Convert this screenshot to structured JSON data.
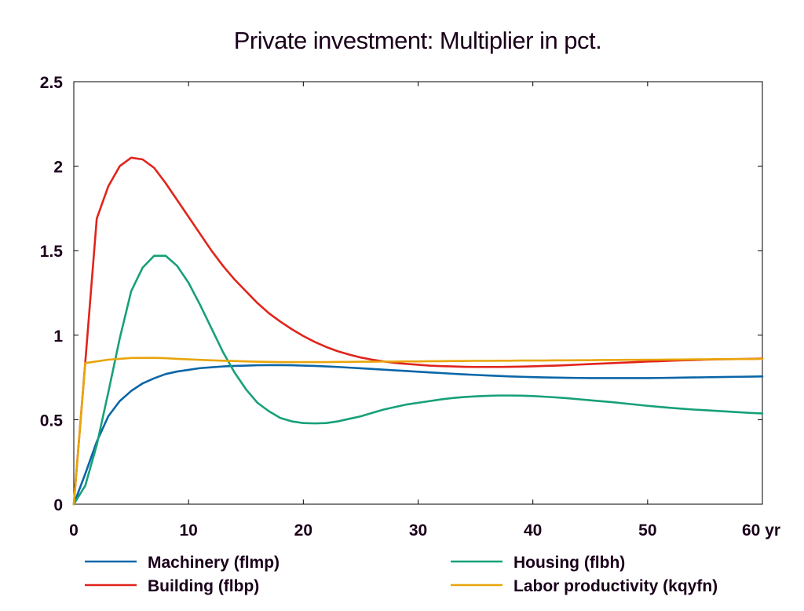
{
  "chart_data": {
    "type": "line",
    "title": "Private investment: Multiplier in pct.",
    "x_unit_label": "yr",
    "xlim": [
      0,
      60
    ],
    "ylim": [
      0,
      2.5
    ],
    "x_ticks": [
      0,
      10,
      20,
      30,
      40,
      50,
      60
    ],
    "x_tick_labels": [
      "0",
      "10",
      "20",
      "30",
      "40",
      "50",
      "60 yr"
    ],
    "y_ticks": [
      0,
      0.5,
      1,
      1.5,
      2,
      2.5
    ],
    "y_tick_labels": [
      "0",
      "0.5",
      "1",
      "1.5",
      "2",
      "2.5"
    ],
    "grid": false,
    "legend_position": "bottom",
    "x": [
      0,
      1,
      2,
      3,
      4,
      5,
      6,
      7,
      8,
      9,
      10,
      11,
      12,
      13,
      14,
      15,
      16,
      17,
      18,
      19,
      20,
      21,
      22,
      23,
      24,
      25,
      26,
      27,
      28,
      29,
      30,
      31,
      32,
      33,
      34,
      35,
      36,
      37,
      38,
      39,
      40,
      41,
      42,
      43,
      44,
      45,
      46,
      47,
      48,
      49,
      50,
      51,
      52,
      53,
      54,
      55,
      56,
      57,
      58,
      59,
      60
    ],
    "series": [
      {
        "name": "Machinery (flmp)",
        "color": "#0a66a8",
        "values": [
          0,
          0.18,
          0.37,
          0.52,
          0.61,
          0.67,
          0.715,
          0.745,
          0.77,
          0.785,
          0.795,
          0.805,
          0.81,
          0.815,
          0.818,
          0.82,
          0.822,
          0.823,
          0.823,
          0.822,
          0.82,
          0.818,
          0.815,
          0.812,
          0.808,
          0.804,
          0.8,
          0.796,
          0.792,
          0.788,
          0.784,
          0.78,
          0.776,
          0.772,
          0.768,
          0.765,
          0.762,
          0.759,
          0.756,
          0.754,
          0.752,
          0.75,
          0.749,
          0.748,
          0.747,
          0.746,
          0.746,
          0.746,
          0.746,
          0.746,
          0.746,
          0.747,
          0.748,
          0.749,
          0.75,
          0.751,
          0.752,
          0.753,
          0.754,
          0.755,
          0.756
        ]
      },
      {
        "name": "Building (flbp)",
        "color": "#e0241b",
        "values": [
          0,
          0.84,
          1.69,
          1.88,
          2.0,
          2.05,
          2.04,
          1.99,
          1.9,
          1.8,
          1.7,
          1.6,
          1.5,
          1.41,
          1.33,
          1.26,
          1.19,
          1.13,
          1.08,
          1.035,
          0.995,
          0.96,
          0.93,
          0.905,
          0.885,
          0.868,
          0.855,
          0.845,
          0.836,
          0.83,
          0.825,
          0.82,
          0.817,
          0.815,
          0.813,
          0.812,
          0.812,
          0.812,
          0.813,
          0.814,
          0.816,
          0.818,
          0.82,
          0.823,
          0.826,
          0.829,
          0.832,
          0.835,
          0.838,
          0.841,
          0.844,
          0.846,
          0.849,
          0.851,
          0.853,
          0.855,
          0.857,
          0.858,
          0.859,
          0.86,
          0.862
        ]
      },
      {
        "name": "Housing (flbh)",
        "color": "#17a079",
        "values": [
          0,
          0.11,
          0.35,
          0.66,
          0.98,
          1.26,
          1.4,
          1.47,
          1.47,
          1.41,
          1.31,
          1.18,
          1.04,
          0.9,
          0.78,
          0.68,
          0.6,
          0.55,
          0.51,
          0.49,
          0.48,
          0.478,
          0.48,
          0.49,
          0.505,
          0.52,
          0.54,
          0.56,
          0.575,
          0.59,
          0.6,
          0.61,
          0.62,
          0.628,
          0.634,
          0.638,
          0.641,
          0.643,
          0.643,
          0.642,
          0.64,
          0.636,
          0.632,
          0.627,
          0.621,
          0.615,
          0.609,
          0.603,
          0.596,
          0.589,
          0.582,
          0.576,
          0.57,
          0.565,
          0.56,
          0.556,
          0.552,
          0.548,
          0.544,
          0.54,
          0.537
        ]
      },
      {
        "name": "Labor productivity (kqyfn)",
        "color": "#e8a50c",
        "values": [
          0,
          0.835,
          0.845,
          0.855,
          0.86,
          0.865,
          0.866,
          0.866,
          0.864,
          0.86,
          0.857,
          0.854,
          0.851,
          0.849,
          0.847,
          0.845,
          0.843,
          0.842,
          0.841,
          0.841,
          0.841,
          0.841,
          0.841,
          0.842,
          0.842,
          0.843,
          0.843,
          0.844,
          0.844,
          0.845,
          0.845,
          0.846,
          0.846,
          0.847,
          0.847,
          0.848,
          0.848,
          0.849,
          0.849,
          0.85,
          0.85,
          0.85,
          0.851,
          0.851,
          0.852,
          0.852,
          0.853,
          0.853,
          0.854,
          0.854,
          0.855,
          0.855,
          0.856,
          0.856,
          0.857,
          0.857,
          0.858,
          0.858,
          0.859,
          0.859,
          0.86
        ]
      }
    ]
  }
}
